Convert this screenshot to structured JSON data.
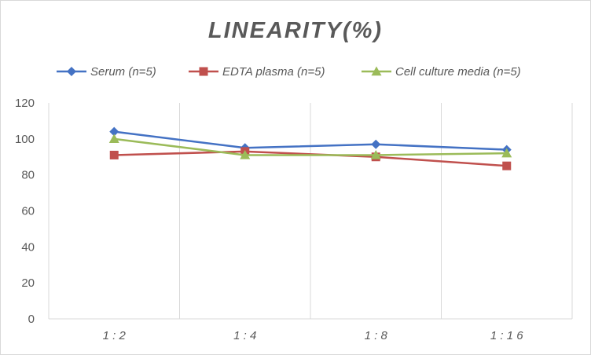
{
  "chart_data": {
    "type": "line",
    "title": "LINEARITY(%)",
    "xlabel": "",
    "ylabel": "",
    "categories": [
      "1:2",
      "1:4",
      "1:8",
      "1:16"
    ],
    "ylim": [
      0,
      120
    ],
    "yticks": [
      0,
      20,
      40,
      60,
      80,
      100,
      120
    ],
    "grid": "vertical",
    "legend_position": "top",
    "series": [
      {
        "name": "Serum (n=5)",
        "values": [
          104,
          95,
          97,
          94
        ],
        "color": "#4472C4",
        "marker": "diamond"
      },
      {
        "name": "EDTA plasma (n=5)",
        "values": [
          91,
          93,
          90,
          85
        ],
        "color": "#C0504D",
        "marker": "square"
      },
      {
        "name": "Cell culture media (n=5)",
        "values": [
          100,
          91,
          91,
          92
        ],
        "color": "#9BBB59",
        "marker": "triangle"
      }
    ]
  }
}
